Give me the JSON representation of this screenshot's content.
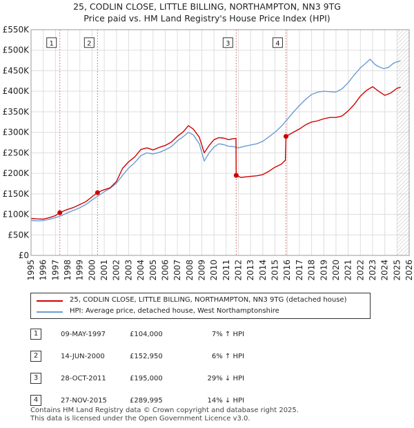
{
  "title_line1": "25, CODLIN CLOSE, LITTLE BILLING, NORTHAMPTON, NN3 9TG",
  "title_line2": "Price paid vs. HM Land Registry's House Price Index (HPI)",
  "colors": {
    "property": "#cc0000",
    "hpi": "#6b9bd2",
    "sale_vline": "#e07b7b",
    "hatch": "#bbbbbb"
  },
  "chart_data": {
    "type": "line",
    "y_ticks": [
      {
        "value": 0,
        "label": "£0"
      },
      {
        "value": 50000,
        "label": "£50K"
      },
      {
        "value": 100000,
        "label": "£100K"
      },
      {
        "value": 150000,
        "label": "£150K"
      },
      {
        "value": 200000,
        "label": "£200K"
      },
      {
        "value": 250000,
        "label": "£250K"
      },
      {
        "value": 300000,
        "label": "£300K"
      },
      {
        "value": 350000,
        "label": "£350K"
      },
      {
        "value": 400000,
        "label": "£400K"
      },
      {
        "value": 450000,
        "label": "£450K"
      },
      {
        "value": 500000,
        "label": "£500K"
      },
      {
        "value": 550000,
        "label": "£550K"
      }
    ],
    "ylim": [
      0,
      550000
    ],
    "xlim": [
      1995,
      2026
    ],
    "x_ticks": [
      "1995",
      "1996",
      "1997",
      "1998",
      "1999",
      "2000",
      "2001",
      "2002",
      "2003",
      "2004",
      "2005",
      "2006",
      "2007",
      "2008",
      "2009",
      "2010",
      "2011",
      "2012",
      "2013",
      "2014",
      "2015",
      "2016",
      "2017",
      "2018",
      "2019",
      "2020",
      "2021",
      "2022",
      "2023",
      "2024",
      "2025",
      "2026"
    ],
    "future_hatch_from": 2025.0,
    "series": [
      {
        "name": "25, CODLIN CLOSE, LITTLE BILLING, NORTHAMPTON, NN3 9TG (detached house)",
        "color": "#cc0000",
        "points": [
          [
            1995.0,
            90000
          ],
          [
            1995.5,
            89000
          ],
          [
            1996.0,
            88500
          ],
          [
            1996.5,
            92000
          ],
          [
            1997.0,
            97000
          ],
          [
            1997.36,
            104000
          ],
          [
            1997.8,
            110000
          ],
          [
            1998.5,
            117000
          ],
          [
            1999.0,
            124000
          ],
          [
            1999.5,
            131000
          ],
          [
            2000.0,
            143000
          ],
          [
            2000.45,
            152950
          ],
          [
            2000.8,
            158000
          ],
          [
            2001.5,
            165000
          ],
          [
            2002.0,
            180000
          ],
          [
            2002.5,
            212000
          ],
          [
            2003.0,
            228000
          ],
          [
            2003.5,
            240000
          ],
          [
            2004.0,
            258000
          ],
          [
            2004.5,
            262000
          ],
          [
            2005.0,
            257000
          ],
          [
            2005.5,
            263000
          ],
          [
            2006.0,
            268000
          ],
          [
            2006.5,
            276000
          ],
          [
            2007.0,
            290000
          ],
          [
            2007.5,
            302000
          ],
          [
            2007.9,
            316000
          ],
          [
            2008.3,
            308000
          ],
          [
            2008.8,
            288000
          ],
          [
            2009.2,
            250000
          ],
          [
            2009.6,
            268000
          ],
          [
            2010.0,
            282000
          ],
          [
            2010.4,
            287000
          ],
          [
            2010.8,
            286000
          ],
          [
            2011.2,
            282000
          ],
          [
            2011.5,
            284000
          ],
          [
            2011.8,
            285000
          ],
          [
            2011.82,
            195000
          ],
          [
            2012.2,
            190000
          ],
          [
            2012.8,
            192000
          ],
          [
            2013.5,
            194000
          ],
          [
            2014.0,
            197000
          ],
          [
            2014.5,
            205000
          ],
          [
            2015.0,
            215000
          ],
          [
            2015.5,
            222000
          ],
          [
            2015.85,
            232000
          ],
          [
            2015.9,
            289995
          ],
          [
            2016.5,
            300000
          ],
          [
            2017.0,
            308000
          ],
          [
            2017.5,
            318000
          ],
          [
            2018.0,
            325000
          ],
          [
            2018.5,
            328000
          ],
          [
            2019.0,
            333000
          ],
          [
            2019.5,
            336000
          ],
          [
            2020.0,
            336000
          ],
          [
            2020.5,
            340000
          ],
          [
            2021.0,
            352000
          ],
          [
            2021.5,
            368000
          ],
          [
            2022.0,
            388000
          ],
          [
            2022.5,
            402000
          ],
          [
            2023.0,
            411000
          ],
          [
            2023.5,
            400000
          ],
          [
            2024.0,
            390000
          ],
          [
            2024.5,
            396000
          ],
          [
            2025.0,
            407000
          ],
          [
            2025.3,
            410000
          ]
        ]
      },
      {
        "name": "HPI: Average price, detached house, West Northamptonshire",
        "color": "#6b9bd2",
        "points": [
          [
            1995.0,
            85000
          ],
          [
            1995.5,
            84500
          ],
          [
            1996.0,
            85000
          ],
          [
            1996.5,
            88000
          ],
          [
            1997.0,
            92000
          ],
          [
            1997.5,
            97000
          ],
          [
            1998.0,
            104000
          ],
          [
            1998.5,
            110000
          ],
          [
            1999.0,
            116000
          ],
          [
            1999.5,
            124000
          ],
          [
            2000.0,
            135000
          ],
          [
            2000.5,
            145000
          ],
          [
            2001.0,
            155000
          ],
          [
            2001.5,
            164000
          ],
          [
            2002.0,
            176000
          ],
          [
            2002.5,
            195000
          ],
          [
            2003.0,
            213000
          ],
          [
            2003.5,
            226000
          ],
          [
            2004.0,
            243000
          ],
          [
            2004.5,
            250000
          ],
          [
            2005.0,
            247000
          ],
          [
            2005.5,
            251000
          ],
          [
            2006.0,
            257000
          ],
          [
            2006.5,
            265000
          ],
          [
            2007.0,
            279000
          ],
          [
            2007.5,
            290000
          ],
          [
            2007.9,
            300000
          ],
          [
            2008.3,
            294000
          ],
          [
            2008.8,
            272000
          ],
          [
            2009.2,
            230000
          ],
          [
            2009.6,
            250000
          ],
          [
            2010.0,
            264000
          ],
          [
            2010.4,
            272000
          ],
          [
            2010.8,
            270000
          ],
          [
            2011.2,
            266000
          ],
          [
            2011.6,
            265000
          ],
          [
            2012.0,
            262000
          ],
          [
            2012.5,
            266000
          ],
          [
            2013.0,
            269000
          ],
          [
            2013.5,
            272000
          ],
          [
            2014.0,
            278000
          ],
          [
            2014.5,
            289000
          ],
          [
            2015.0,
            300000
          ],
          [
            2015.5,
            314000
          ],
          [
            2016.0,
            331000
          ],
          [
            2016.5,
            349000
          ],
          [
            2017.0,
            365000
          ],
          [
            2017.5,
            380000
          ],
          [
            2018.0,
            392000
          ],
          [
            2018.5,
            398000
          ],
          [
            2019.0,
            400000
          ],
          [
            2019.5,
            399000
          ],
          [
            2020.0,
            398000
          ],
          [
            2020.5,
            406000
          ],
          [
            2021.0,
            421000
          ],
          [
            2021.5,
            440000
          ],
          [
            2022.0,
            457000
          ],
          [
            2022.5,
            470000
          ],
          [
            2022.8,
            478000
          ],
          [
            2023.2,
            465000
          ],
          [
            2023.5,
            460000
          ],
          [
            2023.9,
            455000
          ],
          [
            2024.3,
            458000
          ],
          [
            2024.7,
            468000
          ],
          [
            2025.0,
            472000
          ],
          [
            2025.3,
            474000
          ]
        ]
      }
    ],
    "sales": [
      {
        "id": "1",
        "x": 1997.36,
        "value": 104000
      },
      {
        "id": "2",
        "x": 2000.45,
        "value": 152950
      },
      {
        "id": "3",
        "x": 2011.82,
        "value": 195000
      },
      {
        "id": "4",
        "x": 2015.9,
        "value": 289995
      }
    ],
    "marker_box_value": 505000
  },
  "legend": {
    "property_label": "25, CODLIN CLOSE, LITTLE BILLING, NORTHAMPTON, NN3 9TG (detached house)",
    "hpi_label": "HPI: Average price, detached house, West Northamptonshire"
  },
  "sales_table": [
    {
      "id": "1",
      "date": "09-MAY-1997",
      "price": "£104,000",
      "delta": "7% ↑ HPI"
    },
    {
      "id": "2",
      "date": "14-JUN-2000",
      "price": "£152,950",
      "delta": "6% ↑ HPI"
    },
    {
      "id": "3",
      "date": "28-OCT-2011",
      "price": "£195,000",
      "delta": "29% ↓ HPI"
    },
    {
      "id": "4",
      "date": "27-NOV-2015",
      "price": "£289,995",
      "delta": "14% ↓ HPI"
    }
  ],
  "footer_line1": "Contains HM Land Registry data © Crown copyright and database right 2025.",
  "footer_line2": "This data is licensed under the Open Government Licence v3.0."
}
